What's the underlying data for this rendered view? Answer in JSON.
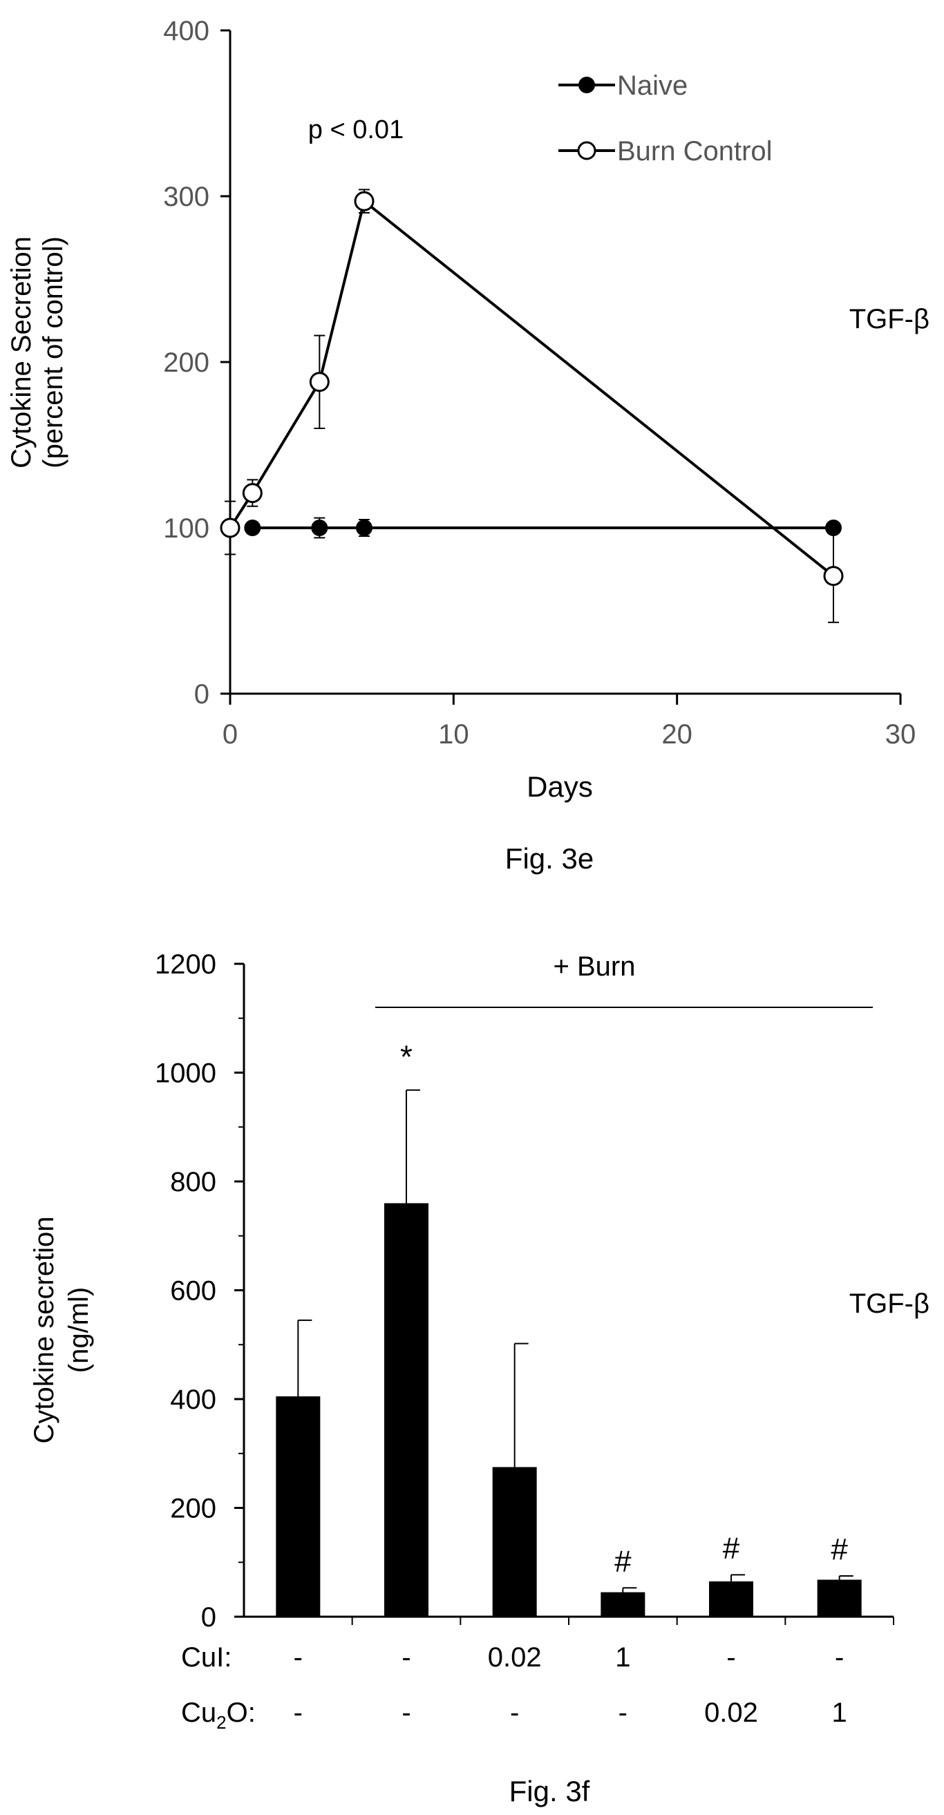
{
  "chart_data": [
    {
      "type": "line",
      "caption": "Fig. 3e",
      "side_label": "TGF-β",
      "annotation": "p < 0.01",
      "ylabel_line1": "Cytokine Secretion",
      "ylabel_line2": "(percent of control)",
      "xlabel": "Days",
      "xlim": [
        0,
        30
      ],
      "ylim": [
        0,
        400
      ],
      "x_ticks": [
        0,
        10,
        20,
        30
      ],
      "y_ticks": [
        0,
        100,
        200,
        300,
        400
      ],
      "legend_position": "top-right",
      "series": [
        {
          "name": "Naive",
          "marker": "filled-circle",
          "x": [
            1,
            4,
            6,
            27
          ],
          "y": [
            100,
            100,
            100,
            100
          ],
          "err": [
            0,
            6,
            5,
            0
          ]
        },
        {
          "name": "Burn Control",
          "marker": "open-circle",
          "x": [
            0,
            1,
            4,
            6,
            27
          ],
          "y": [
            100,
            121,
            188,
            297,
            71
          ],
          "err": [
            16,
            8,
            28,
            7,
            28
          ]
        }
      ]
    },
    {
      "type": "bar",
      "caption": "Fig. 3f",
      "side_label": "TGF-β",
      "group_label": "+ Burn",
      "ylabel_line1": "Cytokine secretion",
      "ylabel_line2": "(ng/ml)",
      "ylim": [
        0,
        1200
      ],
      "y_ticks": [
        0,
        200,
        400,
        600,
        800,
        1000,
        1200
      ],
      "row_labels": {
        "cul": "CuI:",
        "cu2o_main": "Cu",
        "cu2o_sub": "2",
        "cu2o_tail": "O:"
      },
      "categories": [
        {
          "cul": "-",
          "cu2o": "-",
          "value": 405,
          "err": 140,
          "mark": ""
        },
        {
          "cul": "-",
          "cu2o": "-",
          "value": 760,
          "err": 208,
          "mark": "*"
        },
        {
          "cul": "0.02",
          "cu2o": "-",
          "value": 275,
          "err": 227,
          "mark": ""
        },
        {
          "cul": "1",
          "cu2o": "-",
          "value": 45,
          "err": 8,
          "mark": "#"
        },
        {
          "cul": "-",
          "cu2o": "0.02",
          "value": 65,
          "err": 12,
          "mark": "#"
        },
        {
          "cul": "-",
          "cu2o": "1",
          "value": 68,
          "err": 7,
          "mark": "#"
        }
      ]
    }
  ]
}
